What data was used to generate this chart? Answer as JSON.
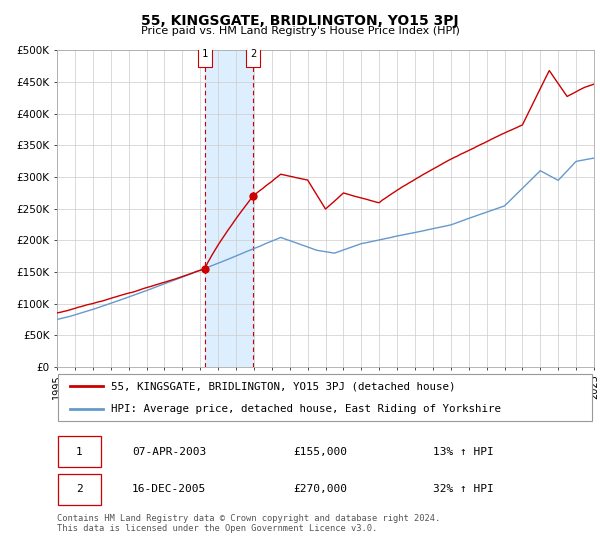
{
  "title": "55, KINGSGATE, BRIDLINGTON, YO15 3PJ",
  "subtitle": "Price paid vs. HM Land Registry's House Price Index (HPI)",
  "xlim": [
    1995,
    2025
  ],
  "ylim": [
    0,
    500000
  ],
  "yticks": [
    0,
    50000,
    100000,
    150000,
    200000,
    250000,
    300000,
    350000,
    400000,
    450000,
    500000
  ],
  "ytick_labels": [
    "£0",
    "£50K",
    "£100K",
    "£150K",
    "£200K",
    "£250K",
    "£300K",
    "£350K",
    "£400K",
    "£450K",
    "£500K"
  ],
  "xticks": [
    1995,
    1996,
    1997,
    1998,
    1999,
    2000,
    2001,
    2002,
    2003,
    2004,
    2005,
    2006,
    2007,
    2008,
    2009,
    2010,
    2011,
    2012,
    2013,
    2014,
    2015,
    2016,
    2017,
    2018,
    2019,
    2020,
    2021,
    2022,
    2023,
    2024,
    2025
  ],
  "property_color": "#cc0000",
  "hpi_color": "#6699cc",
  "shade_color": "#ddeeff",
  "transaction1": {
    "label": "1",
    "date": "07-APR-2003",
    "year": 2003.27,
    "price": 155000,
    "hpi_pct": "13%",
    "direction": "↑"
  },
  "transaction2": {
    "label": "2",
    "date": "16-DEC-2005",
    "year": 2005.96,
    "price": 270000,
    "hpi_pct": "32%",
    "direction": "↑"
  },
  "legend_property": "55, KINGSGATE, BRIDLINGTON, YO15 3PJ (detached house)",
  "legend_hpi": "HPI: Average price, detached house, East Riding of Yorkshire",
  "footnote": "Contains HM Land Registry data © Crown copyright and database right 2024.\nThis data is licensed under the Open Government Licence v3.0.",
  "table_row1": [
    "1",
    "07-APR-2003",
    "£155,000",
    "13% ↑ HPI"
  ],
  "table_row2": [
    "2",
    "16-DEC-2005",
    "£270,000",
    "32% ↑ HPI"
  ]
}
